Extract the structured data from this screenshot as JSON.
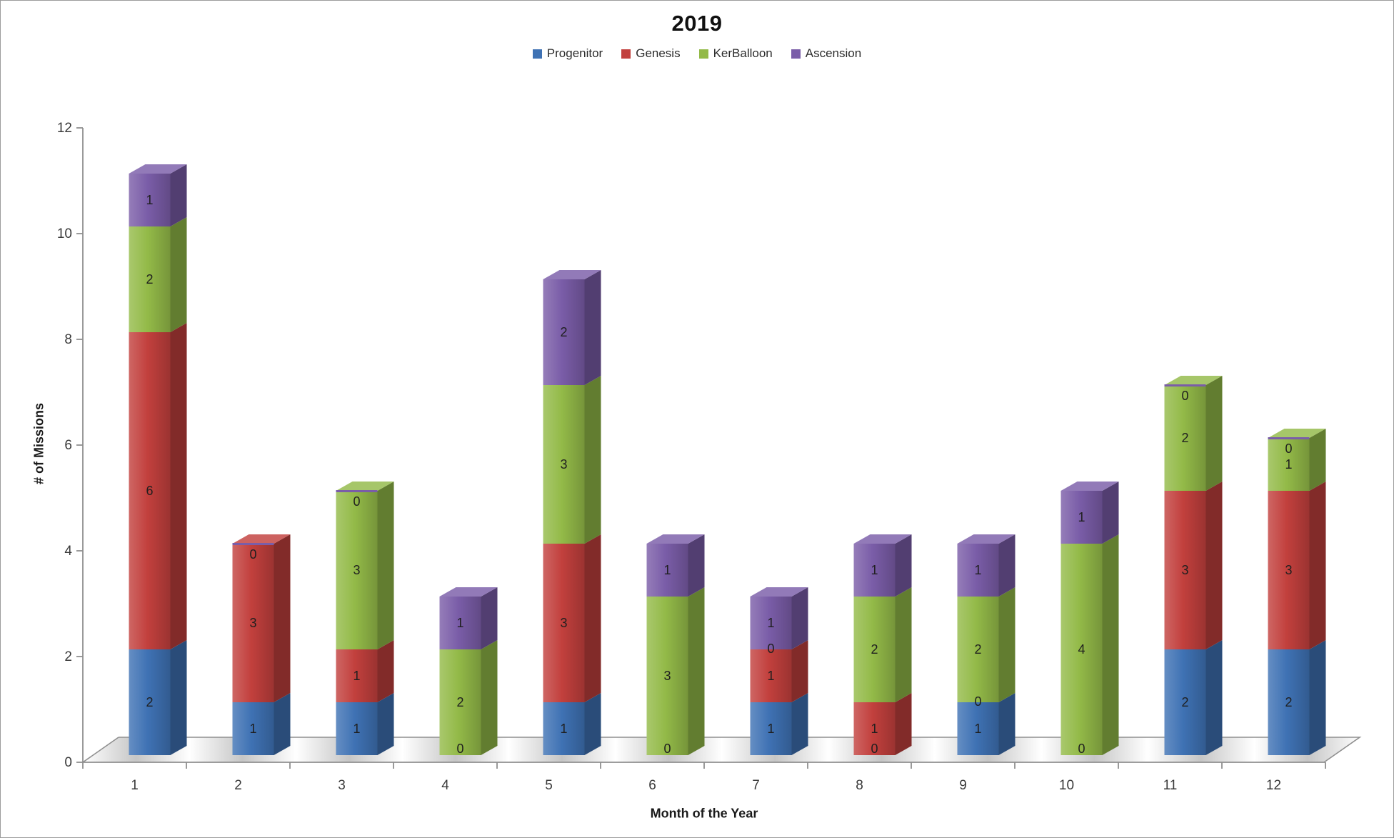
{
  "window": {
    "background": "#ffffff",
    "border_color": "#9c9c9c"
  },
  "chart_data": {
    "type": "bar",
    "stacked": true,
    "effect": "3d",
    "title": "2019",
    "xlabel": "Month of the Year",
    "ylabel": "# of Missions",
    "categories": [
      "1",
      "2",
      "3",
      "4",
      "5",
      "6",
      "7",
      "8",
      "9",
      "10",
      "11",
      "12"
    ],
    "series": [
      {
        "name": "Progenitor",
        "color": "#3f72b4",
        "values": [
          2,
          1,
          1,
          0,
          1,
          0,
          1,
          0,
          1,
          0,
          2,
          2
        ]
      },
      {
        "name": "Genesis",
        "color": "#c2403d",
        "values": [
          6,
          3,
          1,
          0,
          3,
          0,
          1,
          1,
          0,
          0,
          3,
          3
        ]
      },
      {
        "name": "KerBalloon",
        "color": "#93ba48",
        "values": [
          2,
          0,
          3,
          2,
          3,
          3,
          0,
          2,
          2,
          4,
          2,
          1
        ]
      },
      {
        "name": "Ascension",
        "color": "#7a5da8",
        "values": [
          1,
          0,
          0,
          1,
          2,
          1,
          1,
          1,
          1,
          1,
          0,
          0
        ]
      }
    ],
    "totals": [
      11,
      4,
      5,
      3,
      9,
      4,
      3,
      4,
      4,
      5,
      7,
      6
    ],
    "ylim": [
      0,
      12
    ],
    "ytick_step": 2,
    "ytick_labels": [
      "0",
      "2",
      "4",
      "6",
      "8",
      "10",
      "12"
    ],
    "data_labels": true,
    "legend_position": "top",
    "gridlines": false,
    "axis_color": "#8f8f8f",
    "label_color": "#1f1f1f",
    "tick_label_color": "#3a3a3a"
  }
}
